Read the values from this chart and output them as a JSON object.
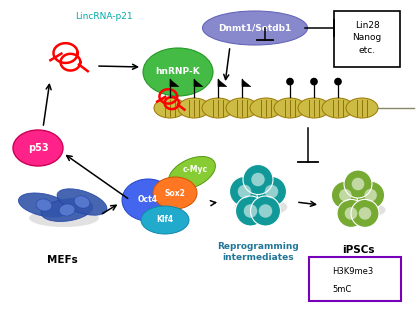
{
  "bg_color": "#ffffff",
  "fig_width": 4.16,
  "fig_height": 3.1,
  "dpi": 100,
  "lincRNA_label": "LincRNA-p21",
  "lincRNA_color": "#00aaaa",
  "lincRNA_label_fontsize": 6.5,
  "p53_label": "p53",
  "p53_color": "#ff2288",
  "p53_fontsize": 7,
  "hnrnp_label": "hnRNP-K",
  "hnrnp_color": "#44bb44",
  "hnrnp_fontsize": 6.5,
  "dnmt1_label": "Dnmt1/Setdb1",
  "dnmt1_color": "#8888cc",
  "dnmt1_fontsize": 6.5,
  "lin28_text": "Lin28\nNanog\netc.",
  "lin28_fontsize": 6.5,
  "oct4_label": "Oct4",
  "oct4_color": "#4466ee",
  "oct4_fontsize": 5.5,
  "sox2_label": "Sox2",
  "sox2_color": "#ff7722",
  "sox2_fontsize": 5.5,
  "cmyc_label": "c-Myc",
  "cmyc_color": "#88cc33",
  "cmyc_fontsize": 5.5,
  "klf4_label": "Klf4",
  "klf4_color": "#22aacc",
  "klf4_fontsize": 5.5,
  "mefs_label": "MEFs",
  "mefs_fontsize": 7.5,
  "reprog_label": "Reprogramming\nintermediates",
  "reprog_fontsize": 6.5,
  "reprog_color": "#227799",
  "ipscs_label": "iPSCs",
  "ipscs_fontsize": 7.5,
  "legend_h3k9_label": "H3K9me3",
  "legend_5mc_label": "5mC",
  "legend_fontsize": 6,
  "legend_box_color": "#7700bb",
  "nucleosome_color": "#ccbb44",
  "mef_cell_color": "#3355aa",
  "reprog_cell_color": "#119999",
  "ipsc_cell_color": "#77aa33"
}
